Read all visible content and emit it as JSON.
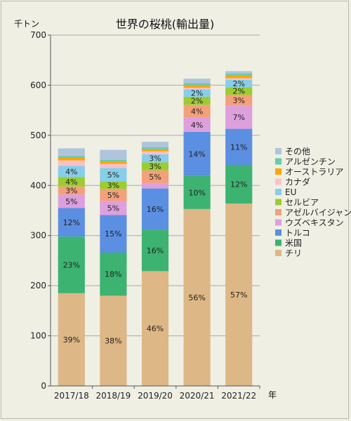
{
  "chart_data": {
    "type": "bar",
    "stacked": true,
    "title": "世界の桜桃(輸出量)",
    "ylabel": "千トン",
    "xlabel": "年",
    "ylim": [
      0,
      700
    ],
    "yticks": [
      0,
      100,
      200,
      300,
      400,
      500,
      600,
      700
    ],
    "grid": true,
    "legend_position": "right",
    "categories": [
      "2017/18",
      "2018/19",
      "2019/20",
      "2020/21",
      "2021/22"
    ],
    "series": [
      {
        "name": "チリ",
        "color": "#ddb785",
        "values": [
          185,
          180,
          229,
          353,
          364
        ],
        "labels": [
          "39%",
          "38%",
          "46%",
          "56%",
          "57%"
        ]
      },
      {
        "name": "米国",
        "color": "#3cb371",
        "values": [
          113,
          86,
          83,
          66,
          77
        ],
        "labels": [
          "23%",
          "18%",
          "16%",
          "10%",
          "12%"
        ]
      },
      {
        "name": "トルコ",
        "color": "#5b8fe2",
        "values": [
          57,
          75,
          82,
          88,
          72
        ],
        "labels": [
          "12%",
          "15%",
          "16%",
          "14%",
          "11%"
        ]
      },
      {
        "name": "ウズベキスタン",
        "color": "#dda0dd",
        "values": [
          27,
          28,
          11,
          28,
          46
        ],
        "labels": [
          "5%",
          "5%",
          "",
          "4%",
          "7%"
        ]
      },
      {
        "name": "アゼルバイジャン",
        "color": "#f4a07a",
        "values": [
          16,
          24,
          25,
          26,
          22
        ],
        "labels": [
          "3%",
          "5%",
          "5%",
          "4%",
          "3%"
        ]
      },
      {
        "name": "セルビア",
        "color": "#9acd32",
        "values": [
          19,
          15,
          16,
          16,
          15
        ],
        "labels": [
          "4%",
          "3%",
          "3%",
          "2%",
          "2%"
        ]
      },
      {
        "name": "EU",
        "color": "#87ceeb",
        "values": [
          22,
          27,
          16,
          15,
          15
        ],
        "labels": [
          "4%",
          "5%",
          "3%",
          "2%",
          "2%"
        ]
      },
      {
        "name": "カナダ",
        "color": "#ffc0cb",
        "values": [
          11,
          8,
          6,
          3,
          3
        ],
        "labels": [
          "",
          "",
          "",
          "",
          ""
        ]
      },
      {
        "name": "オーストラリア",
        "color": "#ffa500",
        "values": [
          5,
          4,
          4,
          5,
          5
        ],
        "labels": [
          "",
          "",
          "",
          "",
          ""
        ]
      },
      {
        "name": "アルゼンチン",
        "color": "#66cdaa",
        "values": [
          4,
          4,
          4,
          4,
          4
        ],
        "labels": [
          "",
          "",
          "",
          "",
          ""
        ]
      },
      {
        "name": "その他",
        "color": "#b0c4de",
        "values": [
          15,
          20,
          11,
          9,
          5
        ],
        "labels": [
          "",
          "",
          "",
          "",
          ""
        ]
      }
    ]
  }
}
